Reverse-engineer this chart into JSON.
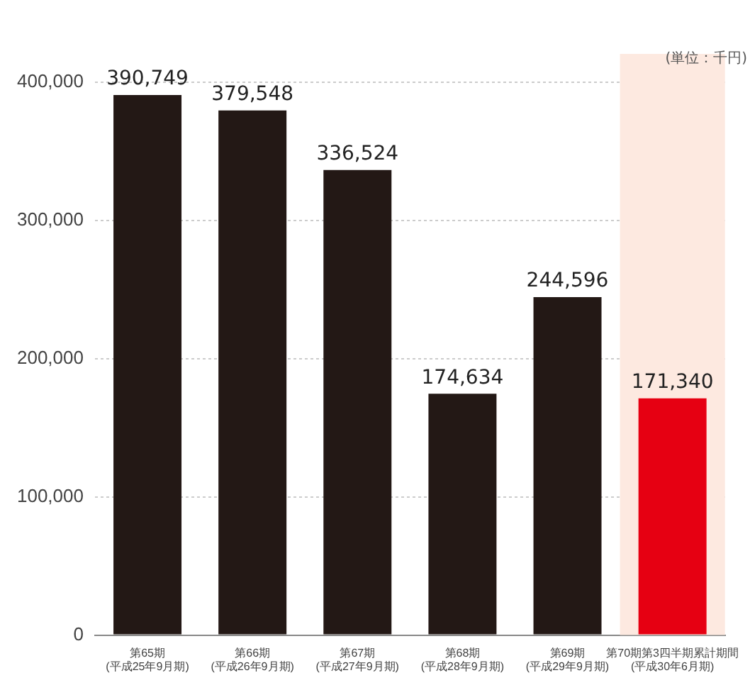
{
  "chart_data": {
    "type": "bar",
    "categories": [
      "第65期\n(平成25年9月期)",
      "第66期\n(平成26年9月期)",
      "第67期\n(平成27年9月期)",
      "第68期\n(平成28年9月期)",
      "第69期\n(平成29年9月期)",
      "第70期第3四半期累計期間\n(平成30年6月期)"
    ],
    "values": [
      390749,
      379548,
      336524,
      174634,
      244596,
      171340
    ],
    "colors": [
      "#231815",
      "#231815",
      "#231815",
      "#231815",
      "#231815",
      "#e60012"
    ],
    "value_labels": [
      "390,749",
      "379,548",
      "336,524",
      "174,634",
      "244,596",
      "171,340"
    ],
    "ylim": [
      0,
      400000
    ],
    "yticks": [
      {
        "value": 0,
        "label": "0"
      },
      {
        "value": 100000,
        "label": "100,000"
      },
      {
        "value": 200000,
        "label": "200,000"
      },
      {
        "value": 300000,
        "label": "300,000"
      },
      {
        "value": 400000,
        "label": "400,000"
      }
    ],
    "grid": "y",
    "legend": false,
    "bands": [
      {
        "axis": "x",
        "from": "第70期第3四半期累計期間\n(平成30年6月期)",
        "to": "第70期第3四半期累計期間\n(平成30年6月期)",
        "color": "#fde9e0"
      }
    ],
    "annotations": [
      "(単位：千円)"
    ]
  }
}
